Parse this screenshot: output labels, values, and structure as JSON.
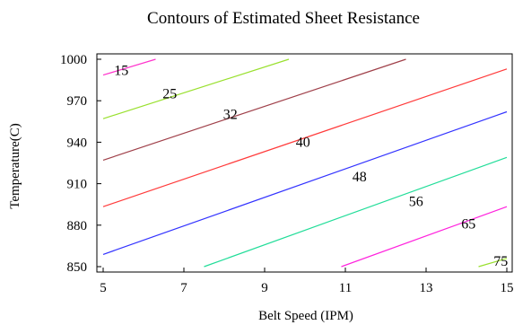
{
  "chart_data": {
    "type": "contour",
    "title": "Contours of Estimated Sheet Resistance",
    "xlabel": "Belt Speed (IPM)",
    "ylabel": "Temperature(C)",
    "xlim": [
      5,
      15
    ],
    "ylim": [
      850,
      1000
    ],
    "xticks": [
      5,
      7,
      9,
      11,
      13,
      15
    ],
    "yticks": [
      850,
      880,
      910,
      940,
      970,
      1000
    ],
    "grid": false,
    "contours": [
      {
        "level": "15",
        "color": "#ff33cc",
        "points": [
          [
            5.0,
            988.6
          ],
          [
            6.3,
            1000.0
          ]
        ],
        "label_at": [
          5.45,
          992
        ]
      },
      {
        "level": "25",
        "color": "#99e02e",
        "points": [
          [
            5.0,
            957.0
          ],
          [
            9.6,
            1000.0
          ]
        ],
        "label_at": [
          6.65,
          975
        ]
      },
      {
        "level": "32",
        "color": "#a0404a",
        "points": [
          [
            5.0,
            927.0
          ],
          [
            12.5,
            1000.0
          ]
        ],
        "label_at": [
          8.15,
          960
        ]
      },
      {
        "level": "40",
        "color": "#ff3b3b",
        "points": [
          [
            5.0,
            893.4
          ],
          [
            15.0,
            993.0
          ]
        ],
        "label_at": [
          9.95,
          940
        ]
      },
      {
        "level": "48",
        "color": "#3333ff",
        "points": [
          [
            5.0,
            858.8
          ],
          [
            15.0,
            962.0
          ]
        ],
        "label_at": [
          11.35,
          915
        ]
      },
      {
        "level": "56",
        "color": "#22dd99",
        "points": [
          [
            7.5,
            850.0
          ],
          [
            15.0,
            929.0
          ]
        ],
        "label_at": [
          12.75,
          897
        ]
      },
      {
        "level": "65",
        "color": "#ff22dd",
        "points": [
          [
            10.9,
            850.0
          ],
          [
            15.0,
            893.4
          ]
        ],
        "label_at": [
          14.05,
          881
        ]
      },
      {
        "level": "75",
        "color": "#99e02e",
        "points": [
          [
            14.3,
            850.0
          ],
          [
            15.0,
            856.0
          ]
        ],
        "label_at": [
          14.85,
          854
        ]
      }
    ]
  }
}
